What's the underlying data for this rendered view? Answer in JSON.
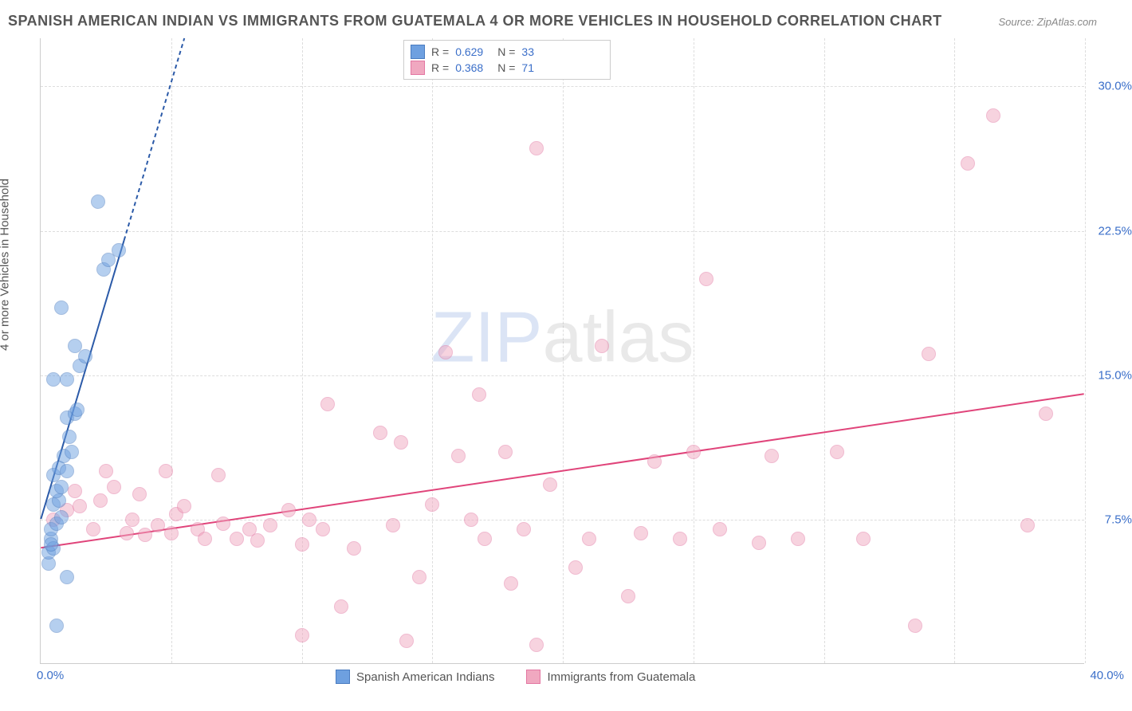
{
  "title": "SPANISH AMERICAN INDIAN VS IMMIGRANTS FROM GUATEMALA 4 OR MORE VEHICLES IN HOUSEHOLD CORRELATION CHART",
  "source": "Source: ZipAtlas.com",
  "ylabel": "4 or more Vehicles in Household",
  "watermark_a": "ZIP",
  "watermark_b": "atlas",
  "chart": {
    "type": "scatter",
    "xlim": [
      0,
      40
    ],
    "ylim": [
      0,
      32.5
    ],
    "yticks": [
      7.5,
      15.0,
      22.5,
      30.0
    ],
    "ytick_labels": [
      "7.5%",
      "15.0%",
      "22.5%",
      "30.0%"
    ],
    "xmin_label": "0.0%",
    "xmax_label": "40.0%",
    "bg": "#ffffff",
    "grid_color": "#dddddd",
    "marker_radius": 9,
    "marker_opacity": 0.5,
    "line_width": 2
  },
  "series_a": {
    "name": "Spanish American Indians",
    "color": "#6ea0e0",
    "border": "#4a7cc0",
    "line_color": "#2b5aa8",
    "R": "0.629",
    "N": "33",
    "trend": {
      "x1": 0,
      "y1": 7.5,
      "x2": 5.5,
      "y2": 32.5
    },
    "points": [
      [
        0.3,
        5.2
      ],
      [
        0.3,
        5.8
      ],
      [
        0.4,
        6.5
      ],
      [
        0.5,
        6.0
      ],
      [
        0.4,
        7.0
      ],
      [
        0.6,
        7.3
      ],
      [
        0.5,
        8.3
      ],
      [
        0.7,
        8.5
      ],
      [
        0.6,
        9.0
      ],
      [
        0.8,
        9.2
      ],
      [
        0.5,
        9.8
      ],
      [
        0.7,
        10.2
      ],
      [
        1.0,
        10.0
      ],
      [
        0.9,
        10.8
      ],
      [
        1.2,
        11.0
      ],
      [
        1.0,
        12.8
      ],
      [
        1.3,
        13.0
      ],
      [
        1.4,
        13.2
      ],
      [
        0.5,
        14.8
      ],
      [
        1.0,
        14.8
      ],
      [
        1.5,
        15.5
      ],
      [
        1.3,
        16.5
      ],
      [
        1.7,
        16.0
      ],
      [
        0.8,
        18.5
      ],
      [
        2.4,
        20.5
      ],
      [
        2.6,
        21.0
      ],
      [
        3.0,
        21.5
      ],
      [
        2.2,
        24.0
      ],
      [
        0.6,
        2.0
      ],
      [
        1.0,
        4.5
      ],
      [
        0.4,
        6.2
      ],
      [
        0.8,
        7.6
      ],
      [
        1.1,
        11.8
      ]
    ]
  },
  "series_b": {
    "name": "Immigrants from Guatemala",
    "color": "#f0a8c0",
    "border": "#e377a2",
    "line_color": "#e0447a",
    "R": "0.368",
    "N": "71",
    "trend": {
      "x1": 0,
      "y1": 6.0,
      "x2": 40,
      "y2": 14.0
    },
    "points": [
      [
        0.5,
        7.5
      ],
      [
        1.0,
        8.0
      ],
      [
        1.5,
        8.2
      ],
      [
        1.3,
        9.0
      ],
      [
        2.0,
        7.0
      ],
      [
        2.3,
        8.5
      ],
      [
        2.8,
        9.2
      ],
      [
        2.5,
        10.0
      ],
      [
        3.3,
        6.8
      ],
      [
        3.5,
        7.5
      ],
      [
        3.8,
        8.8
      ],
      [
        4.0,
        6.7
      ],
      [
        4.5,
        7.2
      ],
      [
        5.0,
        6.8
      ],
      [
        5.2,
        7.8
      ],
      [
        5.5,
        8.2
      ],
      [
        6.0,
        7.0
      ],
      [
        6.3,
        6.5
      ],
      [
        7.0,
        7.3
      ],
      [
        7.5,
        6.5
      ],
      [
        8.0,
        7.0
      ],
      [
        8.3,
        6.4
      ],
      [
        8.8,
        7.2
      ],
      [
        9.5,
        8.0
      ],
      [
        10.0,
        6.2
      ],
      [
        10.3,
        7.5
      ],
      [
        10.8,
        7.0
      ],
      [
        11.0,
        13.5
      ],
      [
        11.5,
        3.0
      ],
      [
        12.0,
        6.0
      ],
      [
        13.0,
        12.0
      ],
      [
        13.5,
        7.2
      ],
      [
        13.8,
        11.5
      ],
      [
        14.0,
        1.2
      ],
      [
        14.5,
        4.5
      ],
      [
        15.0,
        8.3
      ],
      [
        15.5,
        16.2
      ],
      [
        16.0,
        10.8
      ],
      [
        16.5,
        7.5
      ],
      [
        17.0,
        6.5
      ],
      [
        17.8,
        11.0
      ],
      [
        18.0,
        4.2
      ],
      [
        18.5,
        7.0
      ],
      [
        19.0,
        1.0
      ],
      [
        19.5,
        9.3
      ],
      [
        19.0,
        26.8
      ],
      [
        20.5,
        5.0
      ],
      [
        21.0,
        6.5
      ],
      [
        21.5,
        16.5
      ],
      [
        22.5,
        3.5
      ],
      [
        23.0,
        6.8
      ],
      [
        23.5,
        10.5
      ],
      [
        24.5,
        6.5
      ],
      [
        25.0,
        11.0
      ],
      [
        25.5,
        20.0
      ],
      [
        26.0,
        7.0
      ],
      [
        27.5,
        6.3
      ],
      [
        29.0,
        6.5
      ],
      [
        30.5,
        11.0
      ],
      [
        31.5,
        6.5
      ],
      [
        33.5,
        2.0
      ],
      [
        34.0,
        16.1
      ],
      [
        35.5,
        26.0
      ],
      [
        36.5,
        28.5
      ],
      [
        37.8,
        7.2
      ],
      [
        38.5,
        13.0
      ],
      [
        10.0,
        1.5
      ],
      [
        16.8,
        14.0
      ],
      [
        4.8,
        10.0
      ],
      [
        6.8,
        9.8
      ],
      [
        28.0,
        10.8
      ]
    ]
  }
}
